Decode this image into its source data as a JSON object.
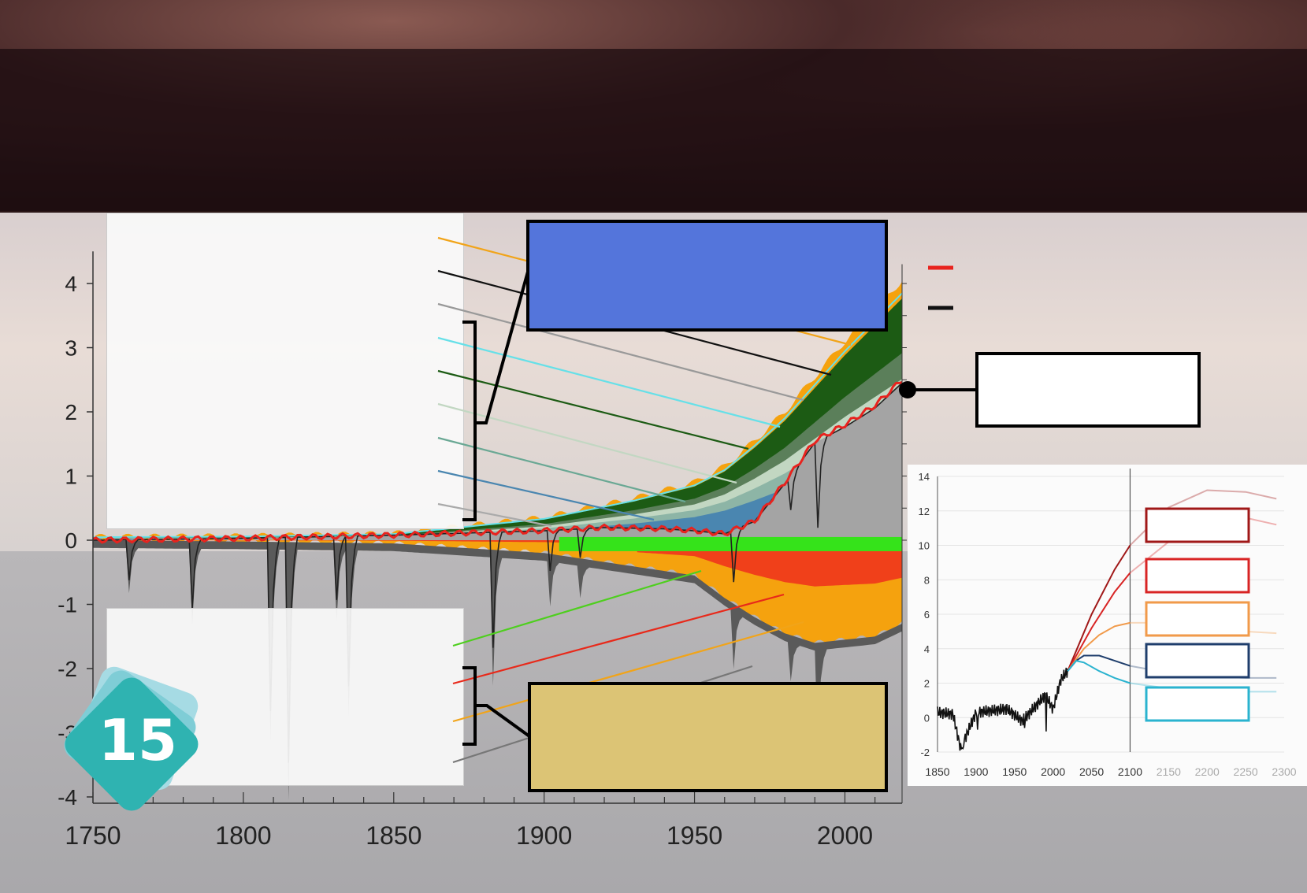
{
  "slide_number": "15",
  "colors": {
    "blue_box": "#5475db",
    "khaki_box": "#dcc475",
    "observed_red": "#e8231e",
    "black": "#111111",
    "gray_area": "#a8a8a8",
    "orange": "#f5a20e",
    "dark_green": "#1c5b14",
    "light_green_band": "#35e31a",
    "red_negative": "#f0401a"
  },
  "chart_data": [
    {
      "type": "area",
      "title": "",
      "xlabel": "",
      "ylabel": "",
      "xlim": [
        1750,
        2019
      ],
      "ylim": [
        -4,
        4.5
      ],
      "x_ticks": [
        "1750",
        "1800",
        "1850",
        "1900",
        "1950",
        "2000"
      ],
      "y_ticks": [
        "4",
        "3",
        "2",
        "1",
        "0",
        "-1",
        "-2",
        "-3",
        "-4"
      ],
      "series": [
        {
          "values_x": [
            1750,
            1800,
            1850,
            1900,
            1930,
            1950,
            1960,
            1970,
            1980,
            1990,
            2000,
            2010,
            2019
          ],
          "values_y": [
            0.05,
            0.06,
            0.1,
            0.35,
            0.65,
            0.9,
            1.15,
            1.55,
            2.0,
            2.55,
            3.1,
            3.6,
            4.05
          ]
        },
        {
          "values_x": [
            1750,
            1800,
            1850,
            1900,
            1920,
            1940,
            1950,
            1960,
            1970,
            1980,
            1990,
            2000,
            2010,
            2019
          ],
          "values_y": [
            0.0,
            0.02,
            0.05,
            0.15,
            0.25,
            0.35,
            0.4,
            0.5,
            0.75,
            1.1,
            1.55,
            1.9,
            2.2,
            2.5
          ]
        },
        {
          "values_x": [
            1750,
            1800,
            1850,
            1900,
            1950,
            1960,
            1970,
            1980,
            1990,
            2000,
            2010,
            2019
          ],
          "values_y": [
            0.0,
            -0.02,
            -0.05,
            -0.2,
            -0.55,
            -0.9,
            -1.2,
            -1.45,
            -1.6,
            -1.55,
            -1.5,
            -1.3
          ]
        },
        {
          "values_x": [
            1750,
            1800,
            1850,
            1900,
            1920,
            1940,
            1950,
            1960,
            1970,
            1980,
            1990,
            2000,
            2010,
            2019
          ],
          "values_y": [
            0.0,
            0.03,
            0.08,
            0.15,
            0.2,
            0.18,
            0.15,
            0.1,
            0.3,
            0.9,
            1.55,
            1.8,
            2.1,
            2.5
          ]
        }
      ]
    },
    {
      "type": "line",
      "title": "",
      "xlabel": "",
      "ylabel": "",
      "xlim": [
        1850,
        2300
      ],
      "ylim": [
        -2,
        14
      ],
      "x_ticks": [
        "1850",
        "1900",
        "1950",
        "2000",
        "2050",
        "2100",
        "2150",
        "2200",
        "2250",
        "2300"
      ],
      "y_ticks": [
        "14",
        "12",
        "10",
        "8",
        "6",
        "4",
        "2",
        "0",
        "-2"
      ],
      "series": [
        {
          "x": [
            1850,
            1870,
            1880,
            1900,
            1920,
            1940,
            1960,
            1980,
            1990,
            2000,
            2010,
            2019
          ],
          "y": [
            0.3,
            0.2,
            -1.8,
            0.3,
            0.4,
            0.5,
            -0.2,
            0.8,
            1.3,
            0.5,
            2.2,
            2.7
          ]
        },
        {
          "x": [
            2019,
            2050,
            2080,
            2100,
            2150,
            2200,
            2250,
            2290
          ],
          "y": [
            2.7,
            6.0,
            8.6,
            10.0,
            12.2,
            13.2,
            13.1,
            12.7
          ]
        },
        {
          "x": [
            2019,
            2050,
            2080,
            2100,
            2150,
            2200,
            2250,
            2290
          ],
          "y": [
            2.7,
            5.2,
            7.3,
            8.4,
            10.2,
            11.4,
            11.6,
            11.2
          ]
        },
        {
          "x": [
            2019,
            2040,
            2060,
            2080,
            2100,
            2150,
            2200,
            2250,
            2290
          ],
          "y": [
            2.7,
            4.0,
            4.8,
            5.3,
            5.5,
            5.5,
            5.2,
            5.0,
            4.9
          ]
        },
        {
          "x": [
            2019,
            2030,
            2040,
            2060,
            2080,
            2100,
            2150,
            2200,
            2250,
            2290
          ],
          "y": [
            2.7,
            3.3,
            3.6,
            3.6,
            3.3,
            3.0,
            2.6,
            2.4,
            2.3,
            2.3
          ]
        },
        {
          "x": [
            2019,
            2030,
            2040,
            2060,
            2080,
            2100,
            2150,
            2200,
            2250,
            2290
          ],
          "y": [
            2.7,
            3.3,
            3.2,
            2.7,
            2.3,
            2.0,
            1.7,
            1.6,
            1.5,
            1.5
          ]
        }
      ]
    }
  ]
}
